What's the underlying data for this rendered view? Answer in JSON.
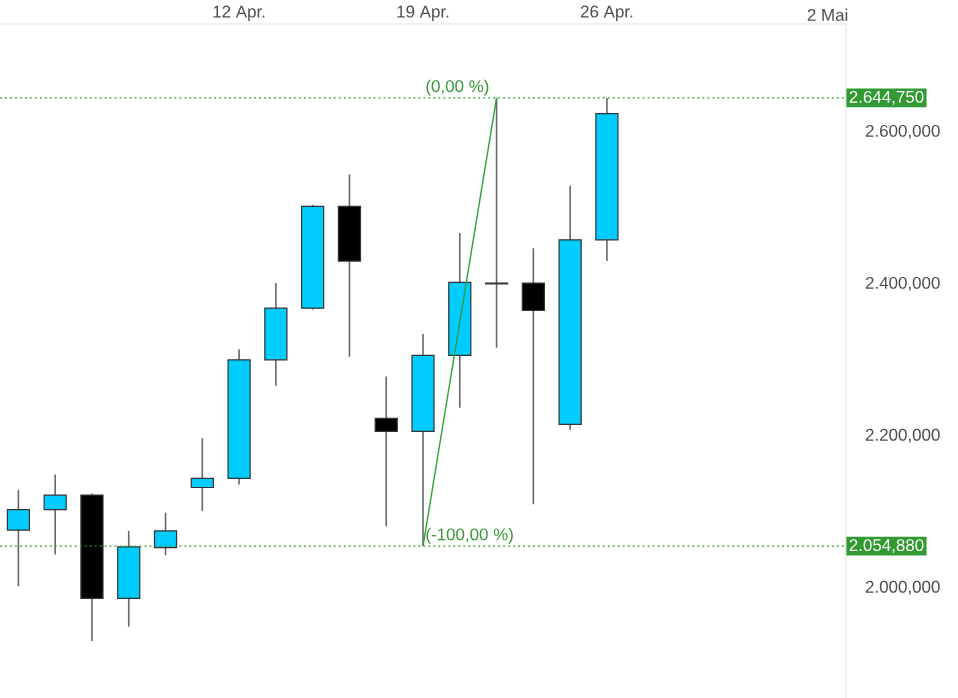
{
  "chart_data": {
    "type": "candlestick",
    "categories": [
      null,
      null,
      null,
      null,
      null,
      null,
      "12 Apr.",
      null,
      null,
      null,
      null,
      "19 Apr.",
      null,
      null,
      null,
      null,
      "26 Apr.",
      null,
      null,
      null,
      null,
      null,
      "2 Mai"
    ],
    "ohlc": [
      [
        2076,
        2129,
        2002,
        2103
      ],
      [
        2103,
        2149,
        2044,
        2122
      ],
      [
        2122,
        2124,
        1930,
        1986
      ],
      [
        1986,
        2075,
        1949,
        2054
      ],
      [
        2053,
        2099,
        2043,
        2075
      ],
      [
        2132,
        2197,
        2101,
        2144
      ],
      [
        2144,
        2314,
        2136,
        2300
      ],
      [
        2300,
        2401,
        2266,
        2368
      ],
      [
        2368,
        2504,
        2366,
        2502
      ],
      [
        2502,
        2544,
        2304,
        2430
      ],
      [
        2223,
        2278,
        2081,
        2206
      ],
      [
        2206,
        2334,
        2054.88,
        2306
      ],
      [
        2306,
        2467,
        2237,
        2402
      ],
      [
        2401,
        2644.75,
        2316,
        2400
      ],
      [
        2401,
        2447,
        2110,
        2365
      ],
      [
        2215,
        2529,
        2208,
        2458
      ],
      [
        2458,
        2644.75,
        2430,
        2624
      ],
      null,
      null,
      null,
      null,
      null,
      null
    ],
    "colors": [
      "#00ccff",
      "#00ccff",
      "#000000",
      "#00ccff",
      "#00ccff",
      "#00ccff",
      "#00ccff",
      "#00ccff",
      "#00ccff",
      "#000000",
      "#000000",
      "#00ccff",
      "#00ccff",
      "#000000",
      "#000000",
      "#00ccff",
      "#00ccff",
      null,
      null,
      null,
      null,
      null,
      null
    ],
    "series": [
      {
        "type": "line",
        "color": "#33a033",
        "values": [
          null,
          null,
          null,
          null,
          null,
          null,
          null,
          null,
          null,
          null,
          null,
          2054.88,
          null,
          2644.75,
          null,
          null,
          null,
          null,
          null,
          null,
          null,
          null,
          null
        ]
      }
    ],
    "ylim": [
      1855,
      2742
    ],
    "yticks": [
      {
        "value": 2000,
        "label": "2.000,000"
      },
      {
        "value": 2200,
        "label": "2.200,000"
      },
      {
        "value": 2400,
        "label": "2.400,000"
      },
      {
        "value": 2600,
        "label": "2.600,000"
      }
    ],
    "ref_lines": [
      {
        "axis": "y",
        "value": 2644.75,
        "label": "2.644,750",
        "color": "#339933",
        "line_style": "dotted"
      },
      {
        "axis": "y",
        "value": 2054.88,
        "label": "2.054,880",
        "color": "#339933",
        "line_style": "dotted"
      }
    ],
    "annotations": [
      {
        "text": "(0,00 %)",
        "y": 2644.75
      },
      {
        "text": "(-100,00 %)",
        "y": 2054.88
      }
    ],
    "grid": false
  }
}
